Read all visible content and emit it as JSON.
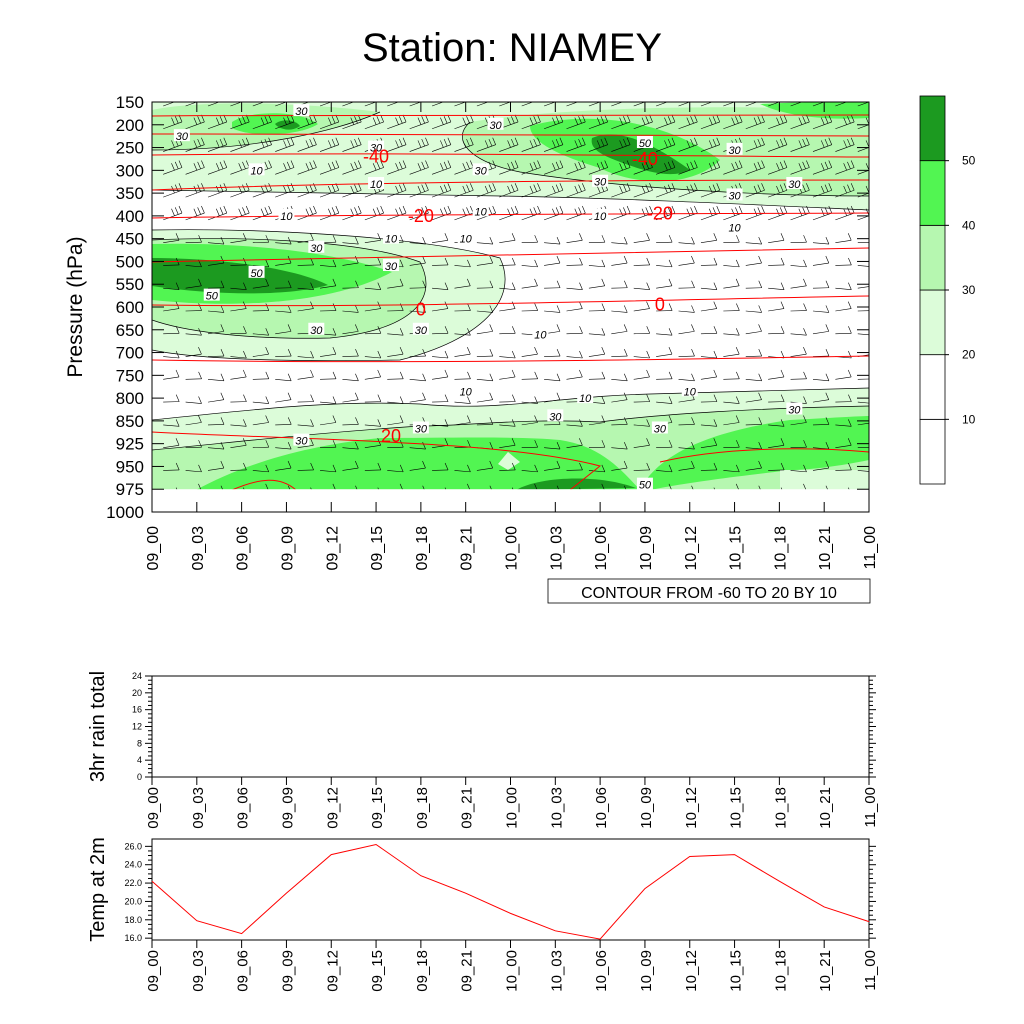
{
  "title": "Station: NIAMEY",
  "chart_data": [
    {
      "type": "heatmap",
      "ylabel": "Pressure (hPa)",
      "pressure_levels": [
        "150",
        "200",
        "250",
        "300",
        "350",
        "400",
        "450",
        "500",
        "550",
        "600",
        "650",
        "700",
        "750",
        "800",
        "850",
        "925",
        "950",
        "975",
        "1000"
      ],
      "time_ticks": [
        "09_00",
        "09_03",
        "09_06",
        "09_09",
        "09_12",
        "09_15",
        "09_18",
        "09_21",
        "10_00",
        "10_03",
        "10_06",
        "10_09",
        "10_12",
        "10_15",
        "10_18",
        "10_21",
        "11_00"
      ],
      "shading_var": "wind speed",
      "colorbar": {
        "levels": [
          10,
          20,
          30,
          40,
          50
        ],
        "colors": [
          "#ffffff",
          "#dcfcd9",
          "#b6f7b0",
          "#52f552",
          "#1c9a20"
        ]
      },
      "wind_contour_labels": [
        {
          "t": "09_02",
          "p": "225",
          "text": "30"
        },
        {
          "t": "09_10",
          "p": "170",
          "text": "30"
        },
        {
          "t": "09_15",
          "p": "250",
          "text": "30"
        },
        {
          "t": "09_23",
          "p": "200",
          "text": "30"
        },
        {
          "t": "10_09",
          "p": "240",
          "text": "50"
        },
        {
          "t": "10_15",
          "p": "255",
          "text": "30"
        },
        {
          "t": "09_22",
          "p": "300",
          "text": "30"
        },
        {
          "t": "10_06",
          "p": "325",
          "text": "30"
        },
        {
          "t": "10_19",
          "p": "330",
          "text": "30"
        },
        {
          "t": "10_15",
          "p": "355",
          "text": "30"
        },
        {
          "t": "09_07",
          "p": "300",
          "text": "10"
        },
        {
          "t": "09_15",
          "p": "330",
          "text": "10"
        },
        {
          "t": "09_09",
          "p": "400",
          "text": "10"
        },
        {
          "t": "09_22",
          "p": "390",
          "text": "10"
        },
        {
          "t": "10_06",
          "p": "400",
          "text": "10"
        },
        {
          "t": "10_15",
          "p": "425",
          "text": "10"
        },
        {
          "t": "09_16",
          "p": "450",
          "text": "10"
        },
        {
          "t": "09_21",
          "p": "450",
          "text": "10"
        },
        {
          "t": "09_11",
          "p": "470",
          "text": "30"
        },
        {
          "t": "09_07",
          "p": "525",
          "text": "50"
        },
        {
          "t": "09_16",
          "p": "510",
          "text": "30"
        },
        {
          "t": "09_04",
          "p": "575",
          "text": "50"
        },
        {
          "t": "09_11",
          "p": "650",
          "text": "30"
        },
        {
          "t": "09_18",
          "p": "650",
          "text": "30"
        },
        {
          "t": "10_02",
          "p": "660",
          "text": "10"
        },
        {
          "t": "09_21",
          "p": "785",
          "text": "10"
        },
        {
          "t": "10_05",
          "p": "800",
          "text": "10"
        },
        {
          "t": "10_12",
          "p": "785",
          "text": "10"
        },
        {
          "t": "10_03",
          "p": "840",
          "text": "30"
        },
        {
          "t": "10_19",
          "p": "825",
          "text": "30"
        },
        {
          "t": "09_18",
          "p": "875",
          "text": "30"
        },
        {
          "t": "10_10",
          "p": "875",
          "text": "30"
        },
        {
          "t": "09_10",
          "p": "915",
          "text": "30"
        },
        {
          "t": "10_09",
          "p": "970",
          "text": "50"
        }
      ],
      "temperature_contour_labels": [
        {
          "t": "09_15",
          "p": "270",
          "text": "-40"
        },
        {
          "t": "10_09",
          "p": "275",
          "text": "-40"
        },
        {
          "t": "09_18",
          "p": "400",
          "text": "-20"
        },
        {
          "t": "10_10",
          "p": "395",
          "text": "-20"
        },
        {
          "t": "09_18",
          "p": "605",
          "text": "0"
        },
        {
          "t": "10_10",
          "p": "595",
          "text": "0"
        },
        {
          "t": "09_16",
          "p": "900",
          "text": "20"
        }
      ],
      "annotation": "CONTOUR FROM -60 TO 20 BY 10"
    },
    {
      "type": "line",
      "ylabel": "3hr rain total",
      "ylim": [
        0,
        24
      ],
      "yticks": [
        "0",
        "4",
        "8",
        "12",
        "16",
        "20",
        "24"
      ],
      "x": [
        "09_00",
        "09_03",
        "09_06",
        "09_09",
        "09_12",
        "09_15",
        "09_18",
        "09_21",
        "10_00",
        "10_03",
        "10_06",
        "10_09",
        "10_12",
        "10_15",
        "10_18",
        "10_21",
        "11_00"
      ],
      "series": [
        {
          "values": [
            0,
            0,
            0,
            0,
            0,
            0,
            0,
            0,
            0,
            0,
            0,
            0,
            0,
            0,
            0,
            0,
            0
          ]
        }
      ]
    },
    {
      "type": "line",
      "ylabel": "Temp at 2m",
      "ylim": [
        15.8,
        26.8
      ],
      "yticks": [
        "16.0",
        "18.0",
        "20.0",
        "22.0",
        "24.0",
        "26.0"
      ],
      "x": [
        "09_00",
        "09_03",
        "09_06",
        "09_09",
        "09_12",
        "09_15",
        "09_18",
        "09_21",
        "10_00",
        "10_03",
        "10_06",
        "10_09",
        "10_12",
        "10_15",
        "10_18",
        "10_21",
        "11_00"
      ],
      "series": [
        {
          "color": "#ff0000",
          "values": [
            22.2,
            17.9,
            16.5,
            20.9,
            25.1,
            26.2,
            22.8,
            20.9,
            18.7,
            16.8,
            15.9,
            21.4,
            24.9,
            25.1,
            22.2,
            19.4,
            17.8
          ]
        }
      ]
    }
  ]
}
